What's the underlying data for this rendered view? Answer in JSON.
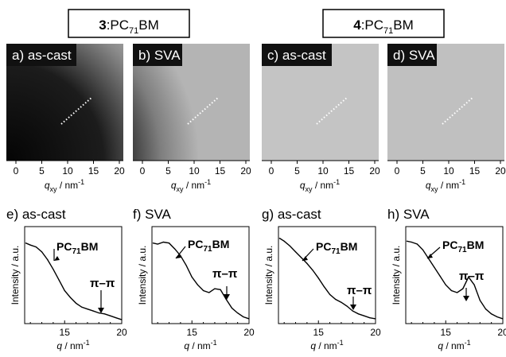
{
  "headers": [
    {
      "prefix": "3",
      "suffix": ":PC",
      "sub": "71",
      "tail": "BM"
    },
    {
      "prefix": "4",
      "suffix": ":PC",
      "sub": "71",
      "tail": "BM"
    }
  ],
  "giwaxs_panels": [
    {
      "label": "a) as-cast"
    },
    {
      "label": "b) SVA"
    },
    {
      "label": "c) as-cast"
    },
    {
      "label": "d) SVA"
    }
  ],
  "giwaxs_axis": {
    "ticks": [
      "0",
      "5",
      "10",
      "15",
      "20"
    ],
    "xlabel_q": "q",
    "xlabel_sub": "xy",
    "xlabel_unit": " / nm",
    "xlabel_exp": "-1"
  },
  "profile_panels": [
    {
      "label": "e) as-cast"
    },
    {
      "label": "f) SVA"
    },
    {
      "label": "g) as-cast"
    },
    {
      "label": "h) SVA"
    }
  ],
  "profile_axis": {
    "ticks": [
      "15",
      "20"
    ],
    "xlabel_q": "q",
    "xlabel_unit": " / nm",
    "xlabel_exp": "-1",
    "ylabel": "Intensity / a.u."
  },
  "annotations": {
    "pcbm_prefix": "PC",
    "pcbm_sub": "71",
    "pcbm_tail": "BM",
    "pi_pi": "π–π"
  },
  "chart_data": [
    {
      "type": "line",
      "title": "e) as-cast",
      "xlabel": "q / nm-1",
      "ylabel": "Intensity / a.u.",
      "xlim": [
        11.5,
        20
      ],
      "ylim": [
        0,
        1
      ],
      "x": [
        11.6,
        12.0,
        12.5,
        13.0,
        13.5,
        14.0,
        14.5,
        15.0,
        15.5,
        16.0,
        16.5,
        17.0,
        17.5,
        18.0,
        18.5,
        19.0,
        19.5,
        20.0
      ],
      "y": [
        0.83,
        0.81,
        0.79,
        0.74,
        0.66,
        0.56,
        0.45,
        0.34,
        0.27,
        0.21,
        0.17,
        0.15,
        0.13,
        0.11,
        0.1,
        0.08,
        0.06,
        0.04
      ]
    },
    {
      "type": "line",
      "title": "f) SVA",
      "xlabel": "q / nm-1",
      "ylabel": "Intensity / a.u.",
      "xlim": [
        11.5,
        20
      ],
      "ylim": [
        0,
        1
      ],
      "x": [
        11.6,
        12.0,
        12.5,
        13.0,
        13.5,
        14.0,
        14.5,
        15.0,
        15.5,
        16.0,
        16.5,
        17.0,
        17.5,
        18.0,
        18.5,
        19.0,
        19.5,
        20.0
      ],
      "y": [
        0.83,
        0.82,
        0.84,
        0.83,
        0.77,
        0.7,
        0.6,
        0.48,
        0.4,
        0.34,
        0.32,
        0.36,
        0.35,
        0.25,
        0.16,
        0.11,
        0.07,
        0.05
      ]
    },
    {
      "type": "line",
      "title": "g) as-cast",
      "xlabel": "q / nm-1",
      "ylabel": "Intensity / a.u.",
      "xlim": [
        11.5,
        20
      ],
      "ylim": [
        0,
        1
      ],
      "x": [
        11.6,
        12.0,
        12.5,
        13.0,
        13.5,
        14.0,
        14.5,
        15.0,
        15.5,
        16.0,
        16.5,
        17.0,
        17.5,
        18.0,
        18.5,
        19.0,
        19.5,
        20.0
      ],
      "y": [
        0.88,
        0.85,
        0.8,
        0.74,
        0.68,
        0.62,
        0.55,
        0.47,
        0.38,
        0.3,
        0.25,
        0.22,
        0.18,
        0.13,
        0.1,
        0.08,
        0.06,
        0.05
      ]
    },
    {
      "type": "line",
      "title": "h) SVA",
      "xlabel": "q / nm-1",
      "ylabel": "Intensity / a.u.",
      "xlim": [
        11.5,
        20
      ],
      "ylim": [
        0,
        1
      ],
      "x": [
        11.6,
        12.0,
        12.5,
        13.0,
        13.5,
        14.0,
        14.5,
        15.0,
        15.5,
        16.0,
        16.5,
        17.0,
        17.5,
        18.0,
        18.5,
        19.0,
        19.5,
        20.0
      ],
      "y": [
        0.85,
        0.84,
        0.82,
        0.76,
        0.67,
        0.58,
        0.49,
        0.4,
        0.34,
        0.32,
        0.36,
        0.48,
        0.4,
        0.24,
        0.15,
        0.1,
        0.07,
        0.05
      ]
    }
  ]
}
